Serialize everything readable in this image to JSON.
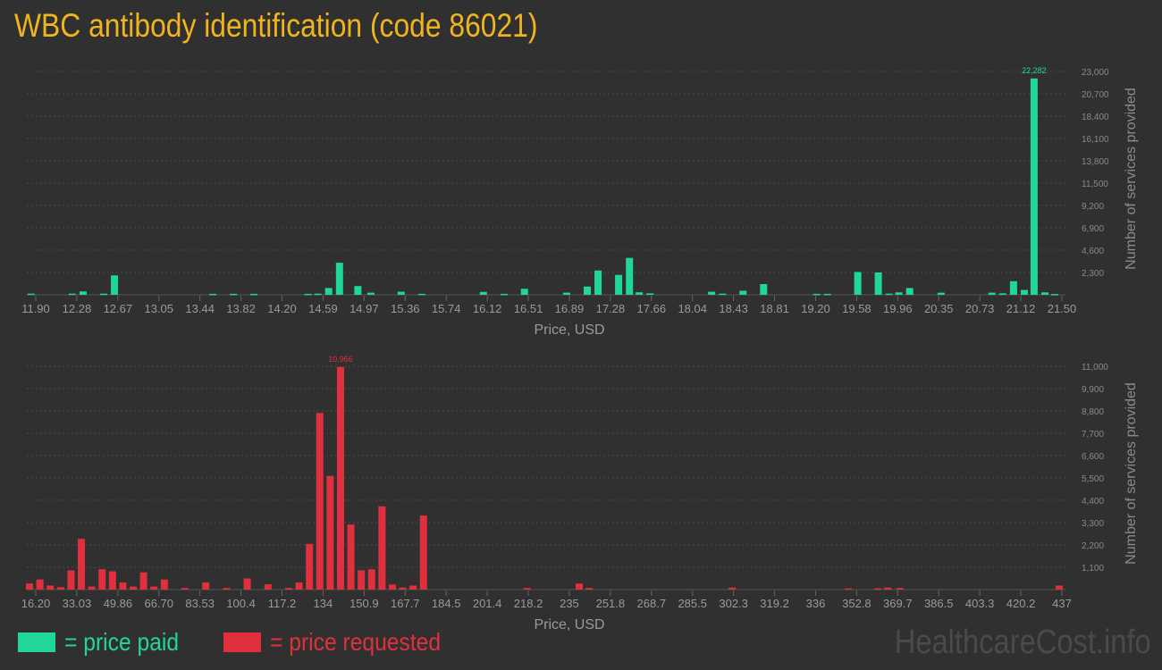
{
  "title": "WBC antibody identification (code 86021)",
  "legend": {
    "paid_label": "= price paid",
    "requested_label": "= price requested"
  },
  "watermark": "HealthcareCost.info",
  "colors": {
    "paid": "#21d699",
    "requested": "#e0303d",
    "title": "#f0b41e"
  },
  "chart_data": [
    {
      "type": "bar",
      "name": "paid",
      "xlabel": "Price, USD",
      "ylabel": "Number of services provided",
      "xlim": [
        11.9,
        21.5
      ],
      "ylim": [
        0,
        23000
      ],
      "x_ticks": [
        "11.90",
        "12.28",
        "12.67",
        "13.05",
        "13.44",
        "13.82",
        "14.20",
        "14.59",
        "14.97",
        "15.36",
        "15.74",
        "16.12",
        "16.51",
        "16.89",
        "17.28",
        "17.66",
        "18.04",
        "18.43",
        "18.81",
        "19.20",
        "19.58",
        "19.96",
        "20.35",
        "20.73",
        "21.12",
        "21.50"
      ],
      "y_ticks": [
        "2,300",
        "4,600",
        "6,900",
        "9,200",
        "11,500",
        "13,800",
        "16,100",
        "18,400",
        "20,700",
        "23,000"
      ],
      "max_label": "22,282",
      "x": [
        11.94,
        12.32,
        12.42,
        12.61,
        12.71,
        13.62,
        13.81,
        14.0,
        14.5,
        14.59,
        14.69,
        14.79,
        14.96,
        15.08,
        15.36,
        15.55,
        16.12,
        16.31,
        16.5,
        16.89,
        17.08,
        17.18,
        17.37,
        17.47,
        17.56,
        17.66,
        18.23,
        18.33,
        18.52,
        18.71,
        19.2,
        19.3,
        19.58,
        19.77,
        19.87,
        19.96,
        20.06,
        20.35,
        20.82,
        20.92,
        21.02,
        21.12,
        21.21,
        21.31,
        21.4
      ],
      "y": [
        120,
        120,
        350,
        120,
        2000,
        100,
        100,
        100,
        100,
        120,
        700,
        3300,
        900,
        220,
        320,
        100,
        300,
        100,
        620,
        220,
        850,
        2500,
        2050,
        3800,
        260,
        150,
        320,
        120,
        420,
        1100,
        100,
        100,
        2350,
        2300,
        120,
        250,
        700,
        220,
        220,
        150,
        1400,
        500,
        22282,
        250,
        80
      ]
    },
    {
      "type": "bar",
      "name": "requested",
      "xlabel": "Price, USD",
      "ylabel": "Number of services provided",
      "xlim": [
        16.2,
        437
      ],
      "ylim": [
        0,
        11000
      ],
      "x_ticks": [
        "16.20",
        "33.03",
        "49.86",
        "66.70",
        "83.53",
        "100.4",
        "117.2",
        "134",
        "150.9",
        "167.7",
        "184.5",
        "201.4",
        "218.2",
        "235",
        "251.8",
        "268.7",
        "285.5",
        "302.3",
        "319.2",
        "336",
        "352.8",
        "369.7",
        "386.5",
        "403.3",
        "420.2",
        "437"
      ],
      "y_ticks": [
        "1,100",
        "2,200",
        "3,300",
        "4,400",
        "5,500",
        "6,600",
        "7,700",
        "8,800",
        "9,900",
        "11,000"
      ],
      "max_label": "10,966",
      "x": [
        17.3,
        21.5,
        25.7,
        29.9,
        34.1,
        38.3,
        42.5,
        46.7,
        50.9,
        55.1,
        59.3,
        63.5,
        67.7,
        71.9,
        80.3,
        88.7,
        97.1,
        105.5,
        113.9,
        122.3,
        126.5,
        130.7,
        134.9,
        139.1,
        143.3,
        147.5,
        151.7,
        155.9,
        160.1,
        164.3,
        168.5,
        172.7,
        176.9,
        218.9,
        240.0,
        244.0,
        302.0,
        349.0,
        361.0,
        365.0,
        370.0,
        434.5
      ],
      "y": [
        300,
        500,
        200,
        120,
        950,
        2500,
        150,
        1000,
        900,
        350,
        150,
        850,
        150,
        500,
        80,
        350,
        80,
        550,
        260,
        80,
        350,
        2250,
        8700,
        5600,
        10966,
        3200,
        950,
        1000,
        4100,
        250,
        100,
        200,
        3650,
        80,
        300,
        80,
        100,
        60,
        60,
        100,
        80,
        200
      ]
    }
  ]
}
